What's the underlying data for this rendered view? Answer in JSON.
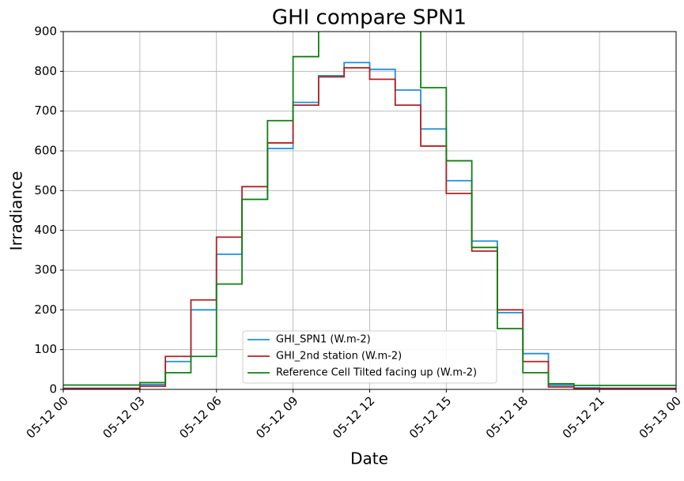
{
  "chart_data": {
    "type": "line",
    "drawstyle": "steps-pre",
    "title": "GHI compare SPN1",
    "x_label": "Date",
    "y_label": "Irradiance",
    "x": [
      "05-12 00",
      "05-12 01",
      "05-12 02",
      "05-12 03",
      "05-12 04",
      "05-12 05",
      "05-12 06",
      "05-12 07",
      "05-12 08",
      "05-12 09",
      "05-12 10",
      "05-12 11",
      "05-12 12",
      "05-12 13",
      "05-12 14",
      "05-12 15",
      "05-12 16",
      "05-12 17",
      "05-12 18",
      "05-12 19",
      "05-12 20",
      "05-12 21",
      "05-12 22",
      "05-12 23",
      "05-13 00"
    ],
    "series": [
      {
        "name": "GHI_SPN1 (W.m-2)",
        "color": "#1f8fdc",
        "values": [
          3,
          3,
          3,
          3,
          12,
          70,
          200,
          340,
          478,
          606,
          722,
          789,
          822,
          805,
          753,
          655,
          525,
          373,
          193,
          90,
          10,
          4,
          3,
          3,
          3
        ]
      },
      {
        "name": "GHI_2nd station (W.m-2)",
        "color": "#b22222",
        "values": [
          2,
          2,
          2,
          2,
          8,
          83,
          225,
          383,
          510,
          620,
          715,
          786,
          809,
          780,
          715,
          612,
          493,
          348,
          200,
          70,
          6,
          2,
          2,
          2,
          2
        ]
      },
      {
        "name": "Reference Cell Tilted facing up (W.m-2)",
        "color": "#108010",
        "values": [
          11,
          11,
          11,
          11,
          17,
          42,
          83,
          265,
          478,
          676,
          837,
          950,
          1000,
          980,
          930,
          759,
          575,
          357,
          153,
          42,
          14,
          10,
          10,
          10,
          10
        ]
      }
    ],
    "ylim": [
      0,
      900
    ],
    "yticks": [
      0,
      100,
      200,
      300,
      400,
      500,
      600,
      700,
      800,
      900
    ],
    "xticks": [
      "05-12 00",
      "05-12 03",
      "05-12 06",
      "05-12 09",
      "05-12 12",
      "05-12 15",
      "05-12 18",
      "05-12 21",
      "05-13 00"
    ],
    "grid": true,
    "legend": "lower center"
  }
}
